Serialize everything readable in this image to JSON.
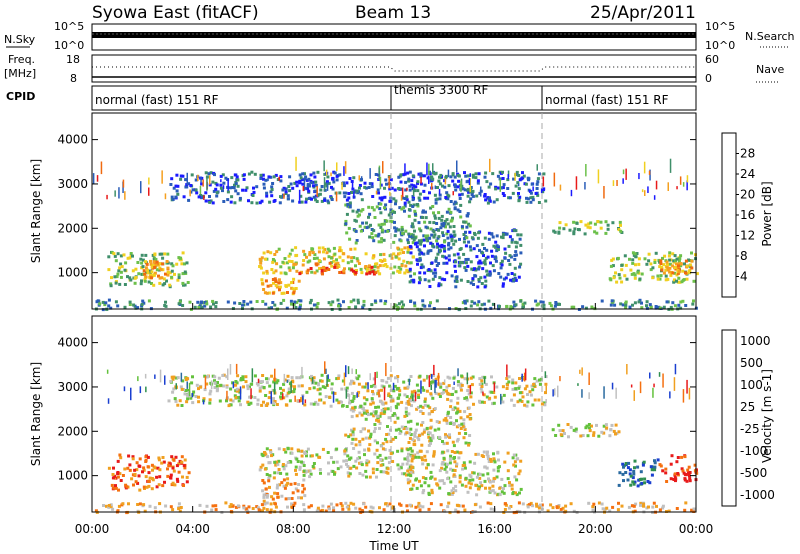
{
  "header": {
    "station": "Syowa East (fitACF)",
    "beam": "Beam 13",
    "date": "25/Apr/2011"
  },
  "aux_labels": {
    "nsky": "N.Sky",
    "nsearch": "N.Search",
    "freq_line1": "Freq.",
    "freq_line2": "[MHz]",
    "nave": "Nave",
    "cpid": "CPID",
    "left_top_1": "10^5",
    "left_bot_1": "10^0",
    "right_top_1": "10^5",
    "right_bot_1": "10^0",
    "left_top_2": "18",
    "left_bot_2": "8",
    "right_top_2": "60",
    "right_bot_2": "0"
  },
  "cpid_segments": [
    {
      "label": "normal (fast) 151 RF",
      "start_h": 0
    },
    {
      "label": "themis 3300 RF",
      "start_h": 12
    },
    {
      "label": "normal (fast) 151 RF",
      "start_h": 18
    }
  ],
  "chart_data": [
    {
      "type": "heatmap",
      "name": "power",
      "xlabel": "",
      "ylabel": "Slant Range [km]",
      "xlim": [
        0,
        24
      ],
      "ylim": [
        180,
        4600
      ],
      "yticks": [
        "1000",
        "2000",
        "3000",
        "4000"
      ],
      "colorbar": {
        "label": "Power [dB]",
        "ticks": [
          "4",
          "8",
          "12",
          "16",
          "20",
          "24",
          "28"
        ],
        "colors": [
          "#1a1aff",
          "#2a5db8",
          "#3f8f6a",
          "#6cc04a",
          "#f0d020",
          "#f5a020",
          "#f06a10",
          "#e81a1a"
        ]
      },
      "regions": [
        {
          "t0": 0.6,
          "t1": 3.8,
          "r0": 700,
          "r1": 1500,
          "level": 3
        },
        {
          "t0": 2.0,
          "t1": 3.0,
          "r0": 900,
          "r1": 1300,
          "level": 5
        },
        {
          "t0": 6.6,
          "t1": 12.8,
          "r0": 1000,
          "r1": 1600,
          "level": 4
        },
        {
          "t0": 8.0,
          "t1": 11.5,
          "r0": 1000,
          "r1": 1250,
          "level": 6
        },
        {
          "t0": 6.6,
          "t1": 8.2,
          "r0": 550,
          "r1": 900,
          "level": 5
        },
        {
          "t0": 10.0,
          "t1": 15.0,
          "r0": 1700,
          "r1": 2600,
          "level": 2
        },
        {
          "t0": 12.5,
          "t1": 17.0,
          "r0": 700,
          "r1": 2000,
          "level": 1
        },
        {
          "t0": 18.2,
          "t1": 21.0,
          "r0": 1900,
          "r1": 2200,
          "level": 3
        },
        {
          "t0": 20.5,
          "t1": 24.0,
          "r0": 800,
          "r1": 1500,
          "level": 3
        },
        {
          "t0": 22.5,
          "t1": 23.8,
          "r0": 1000,
          "r1": 1300,
          "level": 5
        },
        {
          "t0": 3.0,
          "t1": 18.0,
          "r0": 2600,
          "r1": 3300,
          "level": 1
        },
        {
          "t0": 0.0,
          "t1": 24.0,
          "r0": 200,
          "r1": 420,
          "level": 2
        }
      ]
    },
    {
      "type": "heatmap",
      "name": "velocity",
      "xlabel": "Time UT",
      "ylabel": "Slant Range [km]",
      "xlim": [
        0,
        24
      ],
      "ylim": [
        180,
        4600
      ],
      "xticks": [
        "00:00",
        "04:00",
        "08:00",
        "12:00",
        "16:00",
        "20:00",
        "00:00"
      ],
      "yticks": [
        "1000",
        "2000",
        "3000",
        "4000"
      ],
      "colorbar": {
        "label": "Velocity [m s-1]",
        "ticks": [
          "1000",
          "500",
          "100",
          "25",
          "-25",
          "-100",
          "-500",
          "-1000"
        ],
        "colors": [
          "#1a3fd0",
          "#2a6aa0",
          "#2f8f4f",
          "#63c13c",
          "#c0c0c0",
          "#f0a020",
          "#f57010",
          "#e81a1a"
        ]
      },
      "regions": [
        {
          "t0": 0.6,
          "t1": 3.8,
          "r0": 700,
          "r1": 1500,
          "level": 6
        },
        {
          "t0": 6.6,
          "t1": 12.8,
          "r0": 1000,
          "r1": 1650,
          "level": 4
        },
        {
          "t0": 6.6,
          "t1": 8.4,
          "r0": 450,
          "r1": 1000,
          "level": 5
        },
        {
          "t0": 10.0,
          "t1": 15.0,
          "r0": 1700,
          "r1": 2600,
          "level": 4
        },
        {
          "t0": 12.5,
          "t1": 17.0,
          "r0": 600,
          "r1": 1600,
          "level": 4
        },
        {
          "t0": 18.2,
          "t1": 21.0,
          "r0": 1900,
          "r1": 2200,
          "level": 4
        },
        {
          "t0": 20.8,
          "t1": 22.5,
          "r0": 800,
          "r1": 1400,
          "level": 1
        },
        {
          "t0": 22.5,
          "t1": 24.0,
          "r0": 900,
          "r1": 1500,
          "level": 7
        },
        {
          "t0": 3.0,
          "t1": 18.0,
          "r0": 2600,
          "r1": 3300,
          "level": 4
        },
        {
          "t0": 0.0,
          "t1": 24.0,
          "r0": 200,
          "r1": 420,
          "level": 5
        }
      ]
    }
  ]
}
